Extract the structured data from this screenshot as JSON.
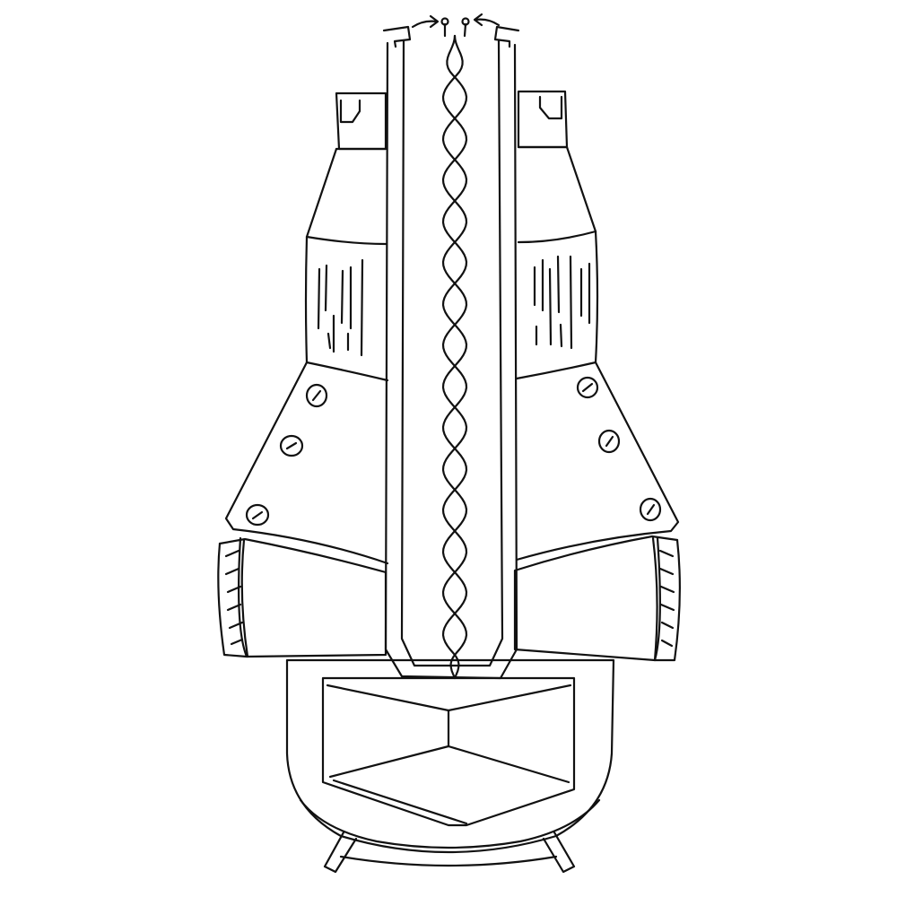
{
  "drawing": {
    "style": "line-drawing",
    "background_color": "#ffffff",
    "ink_color": "#111111",
    "subject": "apparatus-line-sketch",
    "components": [
      "center-tube",
      "twisted-wire-pair",
      "wire-terminals",
      "left-upper-collar",
      "right-upper-collar",
      "left-hatched-band",
      "right-hatched-band",
      "left-flared-skirt",
      "right-flared-skirt",
      "screw-heads",
      "left-side-clamp",
      "right-side-clamp",
      "base-housing",
      "inner-box",
      "feet"
    ],
    "screw_count": 6,
    "icons": [
      "arrow-in-left-icon",
      "arrow-in-right-icon"
    ]
  }
}
